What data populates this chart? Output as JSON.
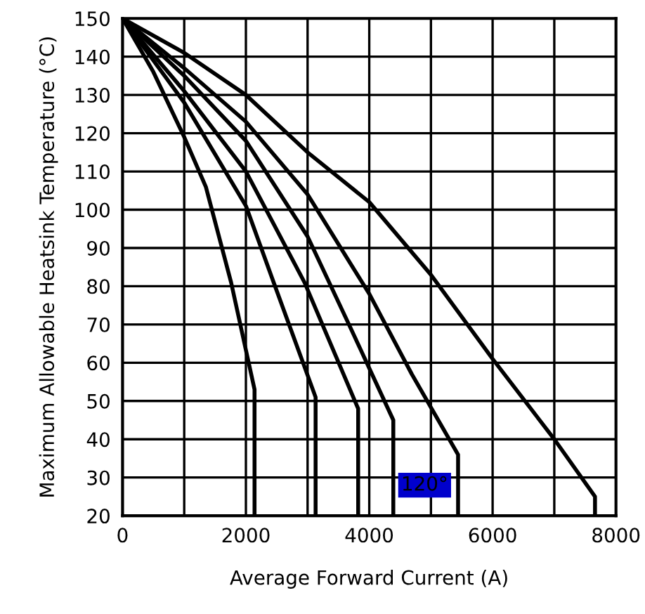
{
  "chart_data": {
    "type": "line",
    "xlabel": "Average Forward Current (A)",
    "ylabel": "Maximum Allowable Heatsink Temperature (°C)",
    "xlim": [
      0,
      8000
    ],
    "ylim": [
      20,
      150
    ],
    "xticks": [
      0,
      {
        "value": 1000,
        "label": null
      },
      2000,
      {
        "value": 3000,
        "label": null
      },
      4000,
      {
        "value": 5000,
        "label": null
      },
      6000,
      {
        "value": 7000,
        "label": null
      },
      8000
    ],
    "yticks": [
      20,
      30,
      40,
      50,
      60,
      70,
      80,
      90,
      100,
      110,
      120,
      130,
      140,
      150
    ],
    "grid": true,
    "marker": "none",
    "line_style": "solid",
    "series": [
      {
        "color": "#000000",
        "x": [
          0,
          500,
          1000,
          1350,
          1760,
          2140,
          2140
        ],
        "values": [
          150,
          136,
          119,
          106,
          81,
          53,
          20
        ]
      },
      {
        "color": "#000000",
        "x": [
          0,
          1000,
          2000,
          2450,
          3130,
          3130
        ],
        "values": [
          150,
          128,
          101,
          81,
          51,
          20
        ]
      },
      {
        "color": "#000000",
        "x": [
          0,
          1000,
          2000,
          2950,
          3820,
          3820
        ],
        "values": [
          150,
          131,
          110,
          81,
          48,
          20
        ]
      },
      {
        "color": "#000000",
        "x": [
          0,
          1000,
          2000,
          3000,
          3700,
          4390,
          4390
        ],
        "values": [
          150,
          135,
          118,
          93,
          69,
          45,
          20
        ]
      },
      {
        "color": "#000000",
        "x": [
          0,
          1000,
          2000,
          3000,
          4000,
          4690,
          5440,
          5440
        ],
        "values": [
          150,
          137,
          123,
          104,
          78,
          57,
          36,
          20
        ]
      },
      {
        "color": "#000000",
        "x": [
          0,
          1000,
          2000,
          3000,
          4000,
          5000,
          6000,
          7000,
          7660,
          7660
        ],
        "values": [
          150,
          141,
          130,
          115,
          102,
          83,
          61,
          40,
          25,
          20
        ]
      }
    ],
    "annotations": [
      {
        "text": "120°",
        "x": 4390,
        "y": 28
      }
    ]
  }
}
